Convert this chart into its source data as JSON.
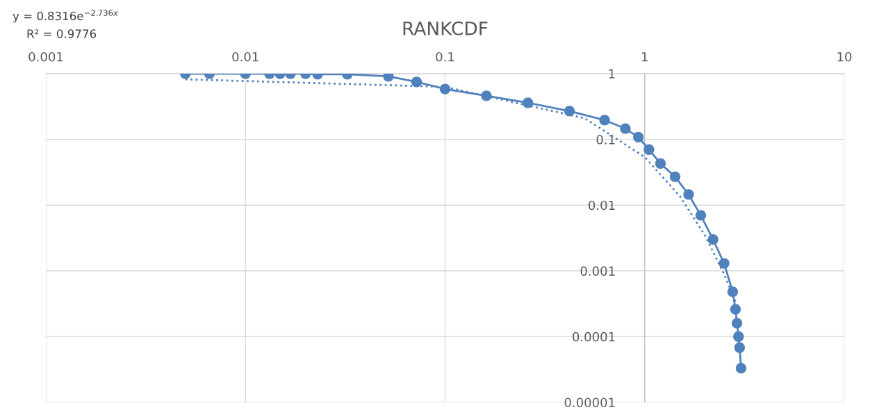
{
  "chart_data": {
    "type": "line",
    "title": "RANKCDF",
    "annotations": [
      "y = 0.8316e$^{−2.736x}$",
      "R² = 0.9776"
    ],
    "log": "xy",
    "grid": true,
    "xlim": [
      0.001,
      10
    ],
    "ylim": [
      1e-05,
      1
    ],
    "xticks": [
      0.001,
      0.01,
      0.1,
      1,
      10
    ],
    "yticks": [
      {
        "value": 1e-05,
        "label": "0.00001"
      },
      0.0001,
      0.001,
      0.01,
      0.1,
      1
    ],
    "series": [
      {
        "color": "#4f81bd",
        "marker": "circle",
        "line_style": "solid",
        "x": [
          0.005,
          0.0066,
          0.01,
          0.0132,
          0.0149,
          0.0168,
          0.02,
          0.023,
          0.0324,
          0.052,
          0.072,
          0.1,
          0.161,
          0.26,
          0.42,
          0.63,
          0.8,
          0.93,
          1.05,
          1.2,
          1.42,
          1.66,
          1.91,
          2.2,
          2.5,
          2.76,
          2.85,
          2.9,
          2.95,
          2.99,
          3.04
        ],
        "values": [
          1,
          1,
          1,
          1,
          1,
          1,
          1,
          0.98,
          0.98,
          0.91,
          0.75,
          0.585,
          0.46,
          0.36,
          0.27,
          0.196,
          0.146,
          0.108,
          0.07,
          0.043,
          0.027,
          0.0145,
          0.007,
          0.003,
          0.0013,
          0.00048,
          0.00026,
          0.00016,
          0.0001,
          6.8e-05,
          3.3e-05
        ]
      },
      {
        "color": "#4f81bd",
        "marker": "none",
        "line_style": "dotted",
        "x": [
          0.005,
          0.1,
          0.5,
          1,
          1.5,
          2,
          2.5,
          2.9
        ],
        "values": [
          0.82,
          0.63,
          0.21,
          0.054,
          0.0137,
          0.0035,
          0.00089,
          0.0003
        ]
      }
    ]
  }
}
